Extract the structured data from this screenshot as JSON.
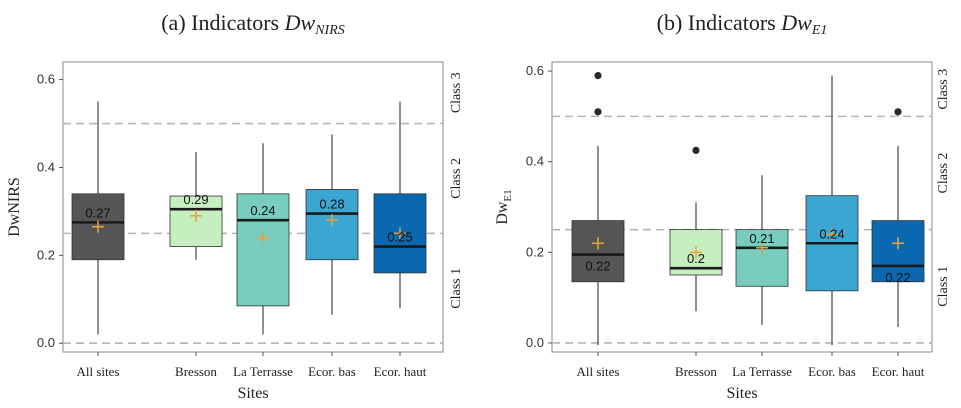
{
  "chart_data": [
    {
      "type": "box",
      "panel_title_prefix": "(a) Indicators ",
      "panel_title_symbol": "Dw",
      "panel_title_subscript": "NIRS",
      "ylabel": "DwNIRS",
      "ylabel_base": "DwNIRS",
      "ylabel_sub": "",
      "xlabel": "Sites",
      "ylim": [
        -0.02,
        0.64
      ],
      "yticks": [
        "0.0",
        "0.2",
        "0.4",
        "0.6"
      ],
      "ytick_values": [
        0.0,
        0.2,
        0.4,
        0.6
      ],
      "reference_lines": [
        0.0,
        0.25,
        0.5
      ],
      "class_labels": [
        "Class 1",
        "Class 2",
        "Class 3"
      ],
      "categories": [
        "All sites",
        "Bresson",
        "La Terrasse",
        "Ecor. bas",
        "Ecor. haut"
      ],
      "box_colors": [
        "#555555",
        "#c6efc0",
        "#78cdbf",
        "#3ba6d2",
        "#0a68b0"
      ],
      "boxes": [
        {
          "site": "All sites",
          "min": 0.02,
          "q1": 0.19,
          "median": 0.275,
          "q3": 0.34,
          "max": 0.55,
          "mean": 0.265,
          "mean_label": "0.27",
          "outliers": []
        },
        {
          "site": "Bresson",
          "min": 0.19,
          "q1": 0.22,
          "median": 0.305,
          "q3": 0.335,
          "max": 0.435,
          "mean": 0.29,
          "mean_label": "0.29",
          "outliers": []
        },
        {
          "site": "La Terrasse",
          "min": 0.02,
          "q1": 0.085,
          "median": 0.28,
          "q3": 0.34,
          "max": 0.455,
          "mean": 0.24,
          "mean_label": "0.24",
          "outliers": []
        },
        {
          "site": "Ecor. bas",
          "min": 0.065,
          "q1": 0.19,
          "median": 0.295,
          "q3": 0.35,
          "max": 0.475,
          "mean": 0.28,
          "mean_label": "0.28",
          "outliers": []
        },
        {
          "site": "Ecor. haut",
          "min": 0.08,
          "q1": 0.16,
          "median": 0.22,
          "q3": 0.34,
          "max": 0.55,
          "mean": 0.25,
          "mean_label": "0.25",
          "outliers": []
        }
      ],
      "mean_label_position": "above"
    },
    {
      "type": "box",
      "panel_title_prefix": "(b) Indicators ",
      "panel_title_symbol": "Dw",
      "panel_title_subscript": "E1",
      "ylabel": "DwE1",
      "ylabel_base": "Dw",
      "ylabel_sub": "E1",
      "xlabel": "Sites",
      "ylim": [
        -0.02,
        0.62
      ],
      "yticks": [
        "0.0",
        "0.2",
        "0.4",
        "0.6"
      ],
      "ytick_values": [
        0.0,
        0.2,
        0.4,
        0.6
      ],
      "reference_lines": [
        0.0,
        0.25,
        0.5
      ],
      "class_labels": [
        "Class 1",
        "Class 2",
        "Class 3"
      ],
      "categories": [
        "All sites",
        "Bresson",
        "La Terrasse",
        "Ecor. bas",
        "Ecor. haut"
      ],
      "box_colors": [
        "#555555",
        "#c6efc0",
        "#78cdbf",
        "#3ba6d2",
        "#0a68b0"
      ],
      "boxes": [
        {
          "site": "All sites",
          "min": -0.005,
          "q1": 0.135,
          "median": 0.195,
          "q3": 0.27,
          "max": 0.435,
          "mean": 0.22,
          "mean_label": "0.22",
          "label_position": "below",
          "outliers": [
            0.51,
            0.59
          ]
        },
        {
          "site": "Bresson",
          "min": 0.07,
          "q1": 0.15,
          "median": 0.165,
          "q3": 0.25,
          "max": 0.31,
          "mean": 0.2,
          "mean_label": "0.2",
          "label_position": "above",
          "outliers": [
            0.425
          ]
        },
        {
          "site": "La Terrasse",
          "min": 0.04,
          "q1": 0.125,
          "median": 0.21,
          "q3": 0.25,
          "max": 0.37,
          "mean": 0.21,
          "mean_label": "0.21",
          "label_position": "above",
          "outliers": []
        },
        {
          "site": "Ecor. bas",
          "min": -0.005,
          "q1": 0.115,
          "median": 0.22,
          "q3": 0.325,
          "max": 0.59,
          "mean": 0.24,
          "mean_label": "0.24",
          "label_position": "above",
          "outliers": []
        },
        {
          "site": "Ecor. haut",
          "min": 0.035,
          "q1": 0.135,
          "median": 0.17,
          "q3": 0.27,
          "max": 0.435,
          "mean": 0.22,
          "mean_label": "0.22",
          "label_position": "below",
          "outliers": [
            0.51
          ]
        }
      ]
    }
  ]
}
